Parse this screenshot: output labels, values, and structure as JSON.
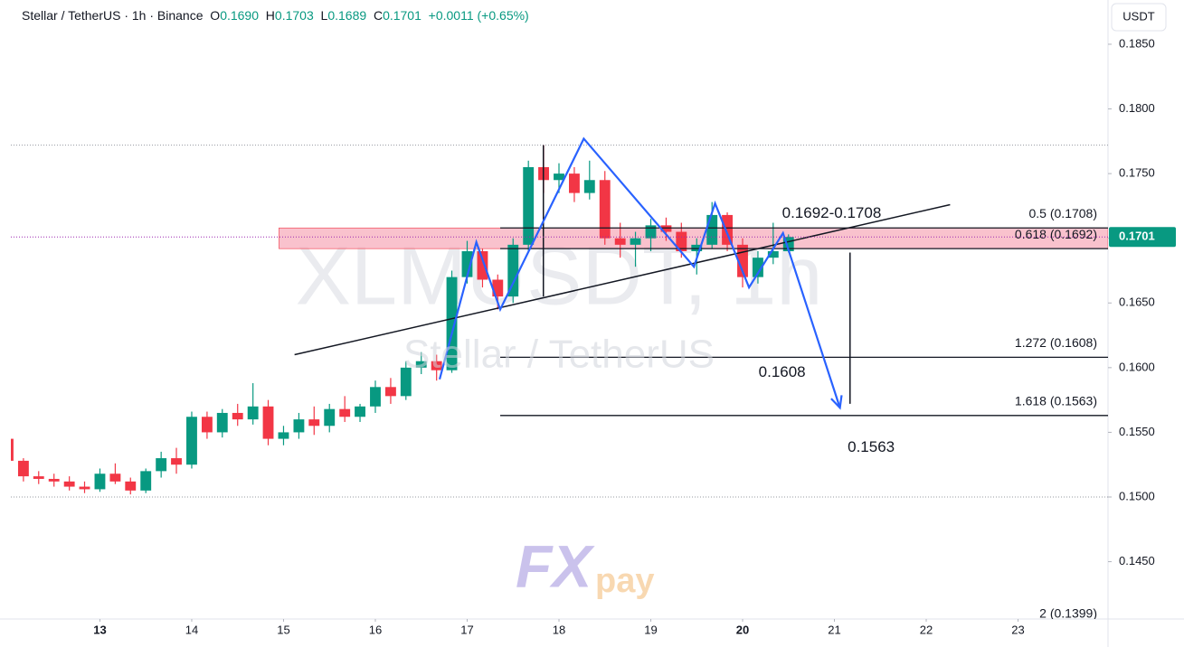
{
  "chart_data": {
    "type": "candlestick",
    "header": {
      "symbol": "Stellar / TetherUS · 1h · Binance",
      "o_label": "O",
      "o_value": "0.1690",
      "h_label": "H",
      "h_value": "0.1703",
      "l_label": "L",
      "l_value": "0.1689",
      "c_label": "C",
      "c_value": "0.1701",
      "change": "+0.0011 (+0.65%)"
    },
    "currency": "USDT",
    "watermark": {
      "ticker": "XLMUSDT, 1h",
      "name": "Stellar / TetherUS"
    },
    "logo": {
      "main": "FX",
      "sub": "pay"
    },
    "x": [
      12,
      12.167,
      12.333,
      12.5,
      12.667,
      12.833,
      13,
      13.167,
      13.333,
      13.5,
      13.667,
      13.833,
      14,
      14.167,
      14.333,
      14.5,
      14.667,
      14.833,
      15,
      15.167,
      15.333,
      15.5,
      15.667,
      15.833,
      16,
      16.167,
      16.333,
      16.5,
      16.667,
      16.833,
      17,
      17.167,
      17.333,
      17.5,
      17.667,
      17.833,
      18,
      18.167,
      18.333,
      18.5,
      18.667,
      18.833,
      19,
      19.167,
      19.333,
      19.5,
      19.667,
      19.833,
      20,
      20.167,
      20.333,
      20.5
    ],
    "open": [
      0.1545,
      0.1528,
      0.1516,
      0.1514,
      0.1512,
      0.1508,
      0.1506,
      0.1518,
      0.1512,
      0.1505,
      0.152,
      0.153,
      0.1525,
      0.1562,
      0.155,
      0.1565,
      0.156,
      0.157,
      0.1545,
      0.155,
      0.156,
      0.1555,
      0.1568,
      0.1562,
      0.157,
      0.1585,
      0.1578,
      0.16,
      0.1605,
      0.1598,
      0.167,
      0.169,
      0.1668,
      0.1655,
      0.1695,
      0.1755,
      0.1745,
      0.175,
      0.1735,
      0.1745,
      0.17,
      0.1695,
      0.17,
      0.171,
      0.1705,
      0.169,
      0.1695,
      0.1718,
      0.1695,
      0.167,
      0.1685,
      0.169
    ],
    "high": [
      0.1548,
      0.153,
      0.152,
      0.1518,
      0.1516,
      0.1512,
      0.1522,
      0.1526,
      0.1515,
      0.1522,
      0.1535,
      0.1538,
      0.1566,
      0.1566,
      0.1568,
      0.1572,
      0.1588,
      0.1575,
      0.1555,
      0.1565,
      0.157,
      0.1572,
      0.1578,
      0.1572,
      0.159,
      0.1592,
      0.1605,
      0.1612,
      0.161,
      0.1675,
      0.1698,
      0.1692,
      0.1672,
      0.17,
      0.176,
      0.1772,
      0.1758,
      0.1755,
      0.176,
      0.1752,
      0.1712,
      0.1705,
      0.1715,
      0.1716,
      0.1712,
      0.17,
      0.1728,
      0.172,
      0.17,
      0.169,
      0.1712,
      0.1703
    ],
    "low": [
      0.1525,
      0.1512,
      0.151,
      0.1508,
      0.1505,
      0.1503,
      0.1504,
      0.151,
      0.1502,
      0.1503,
      0.1515,
      0.1518,
      0.1522,
      0.1545,
      0.1546,
      0.1555,
      0.1556,
      0.154,
      0.154,
      0.1545,
      0.1548,
      0.155,
      0.1558,
      0.1558,
      0.1565,
      0.1572,
      0.1575,
      0.1595,
      0.159,
      0.1596,
      0.1665,
      0.1662,
      0.1645,
      0.165,
      0.169,
      0.1735,
      0.1735,
      0.1728,
      0.173,
      0.1695,
      0.1685,
      0.1678,
      0.169,
      0.1698,
      0.1685,
      0.1672,
      0.1692,
      0.169,
      0.1662,
      0.1665,
      0.168,
      0.1689
    ],
    "close": [
      0.1528,
      0.1516,
      0.1514,
      0.1512,
      0.1508,
      0.1506,
      0.1518,
      0.1512,
      0.1505,
      0.152,
      0.153,
      0.1525,
      0.1562,
      0.155,
      0.1565,
      0.156,
      0.157,
      0.1545,
      0.155,
      0.156,
      0.1555,
      0.1568,
      0.1562,
      0.157,
      0.1585,
      0.1578,
      0.16,
      0.1605,
      0.1598,
      0.167,
      0.169,
      0.1668,
      0.1655,
      0.1695,
      0.1755,
      0.1745,
      0.175,
      0.1735,
      0.1745,
      0.17,
      0.1695,
      0.17,
      0.171,
      0.1705,
      0.169,
      0.1695,
      0.1718,
      0.1695,
      0.167,
      0.1685,
      0.169,
      0.1701
    ],
    "up_color": "#089981",
    "down_color": "#f23645",
    "xlim": [
      12.03,
      23.98
    ],
    "ylim": [
      0.14057,
      0.18842
    ],
    "xticks": [
      13,
      14,
      15,
      16,
      17,
      18,
      19,
      20,
      21,
      22,
      23
    ],
    "yticks": [
      {
        "value": 0.185,
        "label": "0.1850"
      },
      {
        "value": 0.18,
        "label": "0.1800"
      },
      {
        "value": 0.175,
        "label": "0.1750"
      },
      {
        "value": 0.17,
        "label": "0.1700"
      },
      {
        "value": 0.165,
        "label": "0.1650"
      },
      {
        "value": 0.16,
        "label": "0.1600"
      },
      {
        "value": 0.155,
        "label": "0.1550"
      },
      {
        "value": 0.15,
        "label": "0.1500"
      },
      {
        "value": 0.145,
        "label": "0.1450"
      }
    ],
    "last_price": {
      "value": 0.1701,
      "label": "0.1701"
    },
    "last_price_color": "#089981",
    "dotted_levels": [
      0.1772,
      0.15
    ],
    "zone": {
      "x": [
        14.95,
        23.98
      ],
      "y": [
        0.1692,
        0.1708
      ],
      "color": "#f7a8b8"
    },
    "fib_levels": [
      {
        "value": 0.1708,
        "label": "0.5 (0.1708)"
      },
      {
        "value": 0.1692,
        "label": "0.618 (0.1692)"
      },
      {
        "value": 0.1608,
        "label": "1.272 (0.1608)"
      },
      {
        "value": 0.1563,
        "label": "1.618 (0.1563)"
      },
      {
        "value": 0.1399,
        "label": "2 (0.1399)"
      }
    ],
    "fib_start": 17.36,
    "trendline": {
      "x": [
        15.12,
        22.26
      ],
      "y": [
        0.161,
        0.1726
      ]
    },
    "pattern": {
      "x": [
        16.7,
        17.1,
        17.36,
        18.27,
        19.47,
        19.7,
        20.07,
        20.44,
        21.06
      ],
      "y": [
        0.1591,
        0.1697,
        0.1645,
        0.1777,
        0.1678,
        0.1727,
        0.1662,
        0.1704,
        0.1569
      ],
      "color": "#2962ff"
    },
    "measures": [
      {
        "x": 17.83,
        "y": [
          0.1772,
          0.1655
        ]
      },
      {
        "x": 21.17,
        "y": [
          0.1689,
          0.1572
        ]
      }
    ],
    "annotations": [
      {
        "text": "0.1692-0.1708",
        "x": 20.97,
        "y": 0.1719
      },
      {
        "text": "0.1608",
        "x": 20.43,
        "y": 0.1596
      },
      {
        "text": "0.1563",
        "x": 21.4,
        "y": 0.1538
      }
    ]
  }
}
